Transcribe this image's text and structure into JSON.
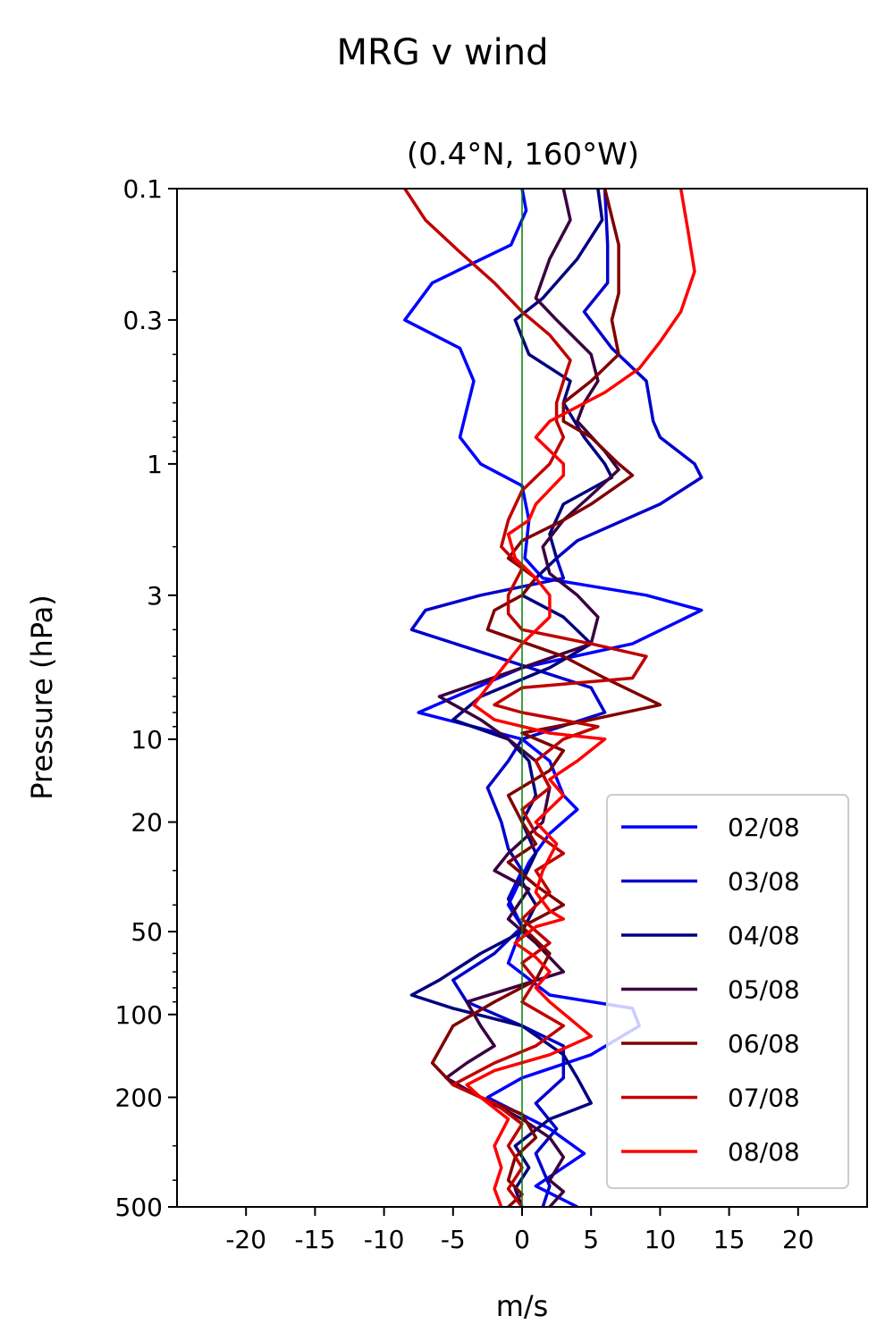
{
  "chart_data": {
    "type": "line",
    "title": "MRG v wind",
    "subtitle": "(0.4°N, 160°W)",
    "xlabel": "m/s",
    "ylabel": "Pressure (hPa)",
    "xlim": [
      -25,
      25
    ],
    "ylim": [
      500,
      0.1
    ],
    "yscale": "log",
    "y_inverted": true,
    "xticks": [
      -20,
      -15,
      -10,
      -5,
      0,
      5,
      10,
      15,
      20
    ],
    "xtick_labels": [
      "-20",
      "-15",
      "-10",
      "-5",
      "0",
      "5",
      "10",
      "15",
      "20"
    ],
    "yticks": [
      0.1,
      0.3,
      1,
      3,
      10,
      20,
      50,
      100,
      200,
      500
    ],
    "ytick_labels": [
      "0.1",
      "0.3",
      "1",
      "3",
      "10",
      "20",
      "50",
      "100",
      "200",
      "500"
    ],
    "zero_line_color": "#008000",
    "grid": false,
    "legend_position": "lower-right",
    "series": [
      {
        "name": "02/08",
        "color": "#0000ff",
        "points": [
          [
            0,
            0.1
          ],
          [
            0.3,
            0.12
          ],
          [
            -0.8,
            0.16
          ],
          [
            -6.5,
            0.22
          ],
          [
            -8.5,
            0.3
          ],
          [
            -4.5,
            0.38
          ],
          [
            -3.5,
            0.5
          ],
          [
            -4.5,
            0.8
          ],
          [
            -3,
            1
          ],
          [
            0,
            1.2
          ],
          [
            0.5,
            1.6
          ],
          [
            0.2,
            2.2
          ],
          [
            1.5,
            2.6
          ],
          [
            9,
            3
          ],
          [
            13,
            3.4
          ],
          [
            8,
            4.5
          ],
          [
            0,
            5.5
          ],
          [
            -7.5,
            8
          ],
          [
            0,
            10
          ],
          [
            2,
            12
          ],
          [
            3,
            16
          ],
          [
            4,
            18
          ],
          [
            2,
            22
          ],
          [
            0.5,
            28
          ],
          [
            -1,
            40
          ],
          [
            0,
            48
          ],
          [
            -1,
            65
          ],
          [
            2,
            85
          ],
          [
            8,
            95
          ],
          [
            8.5,
            110
          ],
          [
            5,
            140
          ],
          [
            0,
            170
          ],
          [
            -2.5,
            200
          ],
          [
            2,
            260
          ],
          [
            4.5,
            320
          ],
          [
            1,
            420
          ],
          [
            4,
            500
          ]
        ]
      },
      {
        "name": "03/08",
        "color": "#0000cc",
        "points": [
          [
            6,
            0.1
          ],
          [
            6.2,
            0.16
          ],
          [
            6.2,
            0.22
          ],
          [
            4.5,
            0.28
          ],
          [
            6.5,
            0.38
          ],
          [
            9,
            0.5
          ],
          [
            9.5,
            0.7
          ],
          [
            10,
            0.8
          ],
          [
            12.5,
            1
          ],
          [
            13,
            1.12
          ],
          [
            10,
            1.4
          ],
          [
            4,
            1.9
          ],
          [
            2.5,
            2.2
          ],
          [
            3,
            2.6
          ],
          [
            -3,
            3
          ],
          [
            -7,
            3.4
          ],
          [
            -8,
            4
          ],
          [
            -2,
            5
          ],
          [
            5,
            6.5
          ],
          [
            6,
            8
          ],
          [
            0,
            10
          ],
          [
            -1,
            12
          ],
          [
            -2.5,
            15
          ],
          [
            -1.5,
            20
          ],
          [
            -1,
            25
          ],
          [
            0,
            30
          ],
          [
            -1,
            38
          ],
          [
            0,
            48
          ],
          [
            -2,
            60
          ],
          [
            -5,
            75
          ],
          [
            -4,
            90
          ],
          [
            0,
            110
          ],
          [
            3,
            130
          ],
          [
            3,
            170
          ],
          [
            1,
            210
          ],
          [
            2.5,
            260
          ],
          [
            1,
            320
          ],
          [
            2,
            420
          ],
          [
            1.5,
            500
          ]
        ]
      },
      {
        "name": "04/08",
        "color": "#000080",
        "points": [
          [
            5.5,
            0.1
          ],
          [
            5.8,
            0.13
          ],
          [
            4,
            0.18
          ],
          [
            1.5,
            0.25
          ],
          [
            -0.5,
            0.3
          ],
          [
            0.5,
            0.4
          ],
          [
            3.5,
            0.5
          ],
          [
            3,
            0.6
          ],
          [
            4.5,
            0.8
          ],
          [
            6,
            1
          ],
          [
            6.5,
            1.12
          ],
          [
            3,
            1.4
          ],
          [
            2,
            1.8
          ],
          [
            2.5,
            2.2
          ],
          [
            1,
            2.6
          ],
          [
            0,
            3
          ],
          [
            3,
            3.6
          ],
          [
            5,
            4.5
          ],
          [
            2,
            5.5
          ],
          [
            -3,
            7
          ],
          [
            -5,
            8.5
          ],
          [
            -1,
            10
          ],
          [
            0.5,
            12
          ],
          [
            1,
            16
          ],
          [
            0,
            20
          ],
          [
            1,
            26
          ],
          [
            0,
            33
          ],
          [
            1,
            40
          ],
          [
            0,
            50
          ],
          [
            -3,
            60
          ],
          [
            -6,
            75
          ],
          [
            -8,
            85
          ],
          [
            -5,
            95
          ],
          [
            0,
            110
          ],
          [
            3,
            140
          ],
          [
            4,
            170
          ],
          [
            5,
            210
          ],
          [
            2,
            240
          ],
          [
            -0.5,
            300
          ],
          [
            0.5,
            360
          ],
          [
            -0.5,
            430
          ],
          [
            0,
            500
          ]
        ]
      },
      {
        "name": "05/08",
        "color": "#3a0040",
        "points": [
          [
            3,
            0.1
          ],
          [
            3.5,
            0.13
          ],
          [
            2,
            0.18
          ],
          [
            1,
            0.25
          ],
          [
            2.5,
            0.3
          ],
          [
            5,
            0.4
          ],
          [
            5.5,
            0.5
          ],
          [
            4.5,
            0.6
          ],
          [
            4,
            0.7
          ],
          [
            6,
            0.9
          ],
          [
            7,
            1.05
          ],
          [
            5,
            1.3
          ],
          [
            3,
            1.6
          ],
          [
            1.5,
            2
          ],
          [
            2,
            2.5
          ],
          [
            4,
            3
          ],
          [
            5.5,
            3.6
          ],
          [
            5,
            4.5
          ],
          [
            0,
            5.5
          ],
          [
            -6,
            7
          ],
          [
            -3,
            8.5
          ],
          [
            -1,
            10
          ],
          [
            1,
            12
          ],
          [
            2,
            15
          ],
          [
            1.5,
            20
          ],
          [
            -1,
            26
          ],
          [
            -2,
            30
          ],
          [
            0.5,
            35
          ],
          [
            -1,
            45
          ],
          [
            1,
            55
          ],
          [
            3,
            70
          ],
          [
            -4,
            90
          ],
          [
            -3,
            110
          ],
          [
            -2,
            130
          ],
          [
            -4,
            150
          ],
          [
            -5.5,
            170
          ],
          [
            -3,
            200
          ],
          [
            0,
            240
          ],
          [
            2,
            280
          ],
          [
            3,
            330
          ],
          [
            2,
            400
          ],
          [
            3,
            440
          ],
          [
            2,
            500
          ]
        ]
      },
      {
        "name": "06/08",
        "color": "#800000",
        "points": [
          [
            6,
            0.1
          ],
          [
            7,
            0.16
          ],
          [
            7,
            0.24
          ],
          [
            6.5,
            0.3
          ],
          [
            7,
            0.4
          ],
          [
            5,
            0.5
          ],
          [
            3,
            0.6
          ],
          [
            3,
            0.7
          ],
          [
            5,
            0.8
          ],
          [
            7,
            1
          ],
          [
            8,
            1.1
          ],
          [
            5,
            1.4
          ],
          [
            3,
            1.6
          ],
          [
            0,
            1.9
          ],
          [
            -1,
            2.2
          ],
          [
            1,
            2.6
          ],
          [
            0,
            3
          ],
          [
            -2,
            3.4
          ],
          [
            -2.5,
            4
          ],
          [
            3,
            5
          ],
          [
            6,
            6
          ],
          [
            10,
            7.5
          ],
          [
            5,
            8.5
          ],
          [
            0,
            9.5
          ],
          [
            3,
            11
          ],
          [
            2,
            13
          ],
          [
            -1,
            16
          ],
          [
            0,
            20
          ],
          [
            1,
            24
          ],
          [
            -1,
            28
          ],
          [
            1,
            34
          ],
          [
            3,
            40
          ],
          [
            0,
            48
          ],
          [
            2,
            60
          ],
          [
            1,
            75
          ],
          [
            -2,
            90
          ],
          [
            -5,
            110
          ],
          [
            -6.5,
            150
          ],
          [
            -5,
            180
          ],
          [
            -3,
            200
          ],
          [
            0,
            230
          ],
          [
            1,
            280
          ],
          [
            -0.5,
            330
          ],
          [
            -1,
            400
          ],
          [
            0,
            450
          ],
          [
            -1,
            500
          ]
        ]
      },
      {
        "name": "07/08",
        "color": "#c00000",
        "points": [
          [
            -8.5,
            0.1
          ],
          [
            -7,
            0.13
          ],
          [
            -4.5,
            0.17
          ],
          [
            -2,
            0.22
          ],
          [
            0,
            0.28
          ],
          [
            2,
            0.34
          ],
          [
            3.5,
            0.42
          ],
          [
            3,
            0.5
          ],
          [
            2.5,
            0.6
          ],
          [
            2.5,
            0.7
          ],
          [
            3,
            0.8
          ],
          [
            2,
            1
          ],
          [
            0,
            1.25
          ],
          [
            -1,
            1.6
          ],
          [
            -1.5,
            2
          ],
          [
            0,
            2.4
          ],
          [
            -1,
            3
          ],
          [
            -1,
            3.5
          ],
          [
            0,
            4
          ],
          [
            5,
            4.5
          ],
          [
            9,
            5
          ],
          [
            8,
            6
          ],
          [
            0,
            6.5
          ],
          [
            -2,
            7.5
          ],
          [
            0,
            8
          ],
          [
            5.5,
            9
          ],
          [
            3,
            10
          ],
          [
            1,
            12
          ],
          [
            2,
            15
          ],
          [
            0,
            18
          ],
          [
            1,
            22
          ],
          [
            3,
            26
          ],
          [
            1,
            30
          ],
          [
            2,
            36
          ],
          [
            0,
            45
          ],
          [
            2,
            55
          ],
          [
            0,
            65
          ],
          [
            1,
            75
          ],
          [
            0,
            90
          ],
          [
            3,
            110
          ],
          [
            1,
            130
          ],
          [
            -2,
            150
          ],
          [
            -5,
            180
          ],
          [
            -2,
            210
          ],
          [
            0,
            250
          ],
          [
            -1,
            300
          ],
          [
            0,
            360
          ],
          [
            -1,
            430
          ],
          [
            0,
            500
          ]
        ]
      },
      {
        "name": "08/08",
        "color": "#ff0000",
        "points": [
          [
            11.5,
            0.1
          ],
          [
            12,
            0.14
          ],
          [
            12.5,
            0.2
          ],
          [
            11.5,
            0.28
          ],
          [
            10,
            0.36
          ],
          [
            8.5,
            0.45
          ],
          [
            6,
            0.55
          ],
          [
            2,
            0.7
          ],
          [
            1,
            0.8
          ],
          [
            3,
            1
          ],
          [
            3,
            1.1
          ],
          [
            1,
            1.4
          ],
          [
            0.5,
            1.6
          ],
          [
            -1,
            1.8
          ],
          [
            -0.5,
            2.2
          ],
          [
            1,
            2.6
          ],
          [
            2,
            3
          ],
          [
            2,
            3.6
          ],
          [
            0,
            4.5
          ],
          [
            -2,
            6
          ],
          [
            -3.5,
            7.5
          ],
          [
            -2,
            8.5
          ],
          [
            2,
            9.5
          ],
          [
            6,
            10
          ],
          [
            4,
            12
          ],
          [
            2,
            14
          ],
          [
            3,
            16
          ],
          [
            1,
            20
          ],
          [
            2.5,
            24
          ],
          [
            1.5,
            30
          ],
          [
            1,
            36
          ],
          [
            2,
            42
          ],
          [
            3,
            45
          ],
          [
            1,
            48
          ],
          [
            -0.5,
            55
          ],
          [
            1,
            62
          ],
          [
            2,
            70
          ],
          [
            1,
            80
          ],
          [
            2,
            90
          ],
          [
            5,
            120
          ],
          [
            2,
            140
          ],
          [
            -2,
            160
          ],
          [
            -4,
            180
          ],
          [
            -3,
            200
          ],
          [
            -1,
            240
          ],
          [
            -2,
            300
          ],
          [
            -1.5,
            360
          ],
          [
            -2,
            430
          ],
          [
            -1.5,
            500
          ]
        ]
      }
    ]
  }
}
